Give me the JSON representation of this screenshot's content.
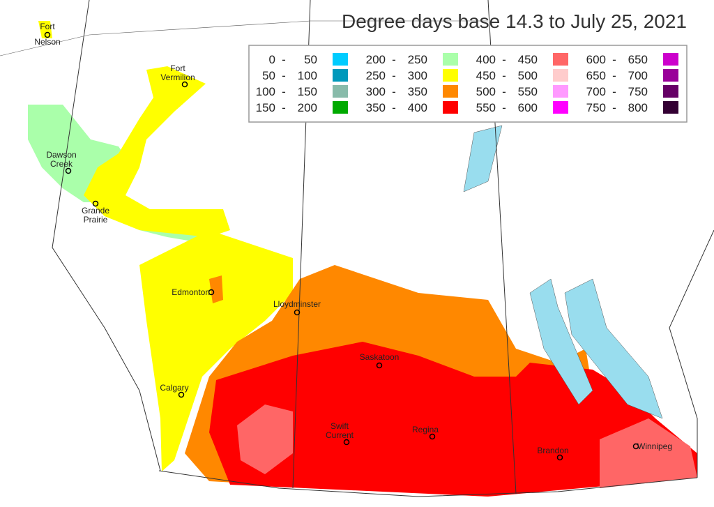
{
  "title": "Degree days base 14.3 to July 25, 2021",
  "legend": {
    "separator": "-",
    "items": [
      {
        "low": 0,
        "high": 50,
        "color": "#00ccff"
      },
      {
        "low": 50,
        "high": 100,
        "color": "#0099bb"
      },
      {
        "low": 100,
        "high": 150,
        "color": "#88bbaa"
      },
      {
        "low": 150,
        "high": 200,
        "color": "#00aa00"
      },
      {
        "low": 200,
        "high": 250,
        "color": "#aaffaa"
      },
      {
        "low": 250,
        "high": 300,
        "color": "#ffff00"
      },
      {
        "low": 300,
        "high": 350,
        "color": "#ff8800"
      },
      {
        "low": 350,
        "high": 400,
        "color": "#ff0000"
      },
      {
        "low": 400,
        "high": 450,
        "color": "#ff6666"
      },
      {
        "low": 450,
        "high": 500,
        "color": "#ffcccc"
      },
      {
        "low": 500,
        "high": 550,
        "color": "#ff99ff"
      },
      {
        "low": 550,
        "high": 600,
        "color": "#ff00ff"
      },
      {
        "low": 600,
        "high": 650,
        "color": "#cc00cc"
      },
      {
        "low": 650,
        "high": 700,
        "color": "#990099"
      },
      {
        "low": 700,
        "high": 750,
        "color": "#660066"
      },
      {
        "low": 750,
        "high": 800,
        "color": "#330033"
      }
    ]
  },
  "cities": [
    {
      "lines": [
        "Fort",
        "Nelson"
      ]
    },
    {
      "lines": [
        "Fort",
        "Vermilion"
      ]
    },
    {
      "lines": [
        "Dawson",
        "Creek"
      ]
    },
    {
      "lines": [
        "Grande",
        "Prairie"
      ]
    },
    {
      "lines": [
        "Edmonton"
      ]
    },
    {
      "lines": [
        "Lloydminster"
      ]
    },
    {
      "lines": [
        "Saskatoon"
      ]
    },
    {
      "lines": [
        "Calgary"
      ]
    },
    {
      "lines": [
        "Swift",
        "Current"
      ]
    },
    {
      "lines": [
        "Regina"
      ]
    },
    {
      "lines": [
        "Brandon"
      ]
    },
    {
      "lines": [
        "Winnipeg"
      ]
    }
  ]
}
